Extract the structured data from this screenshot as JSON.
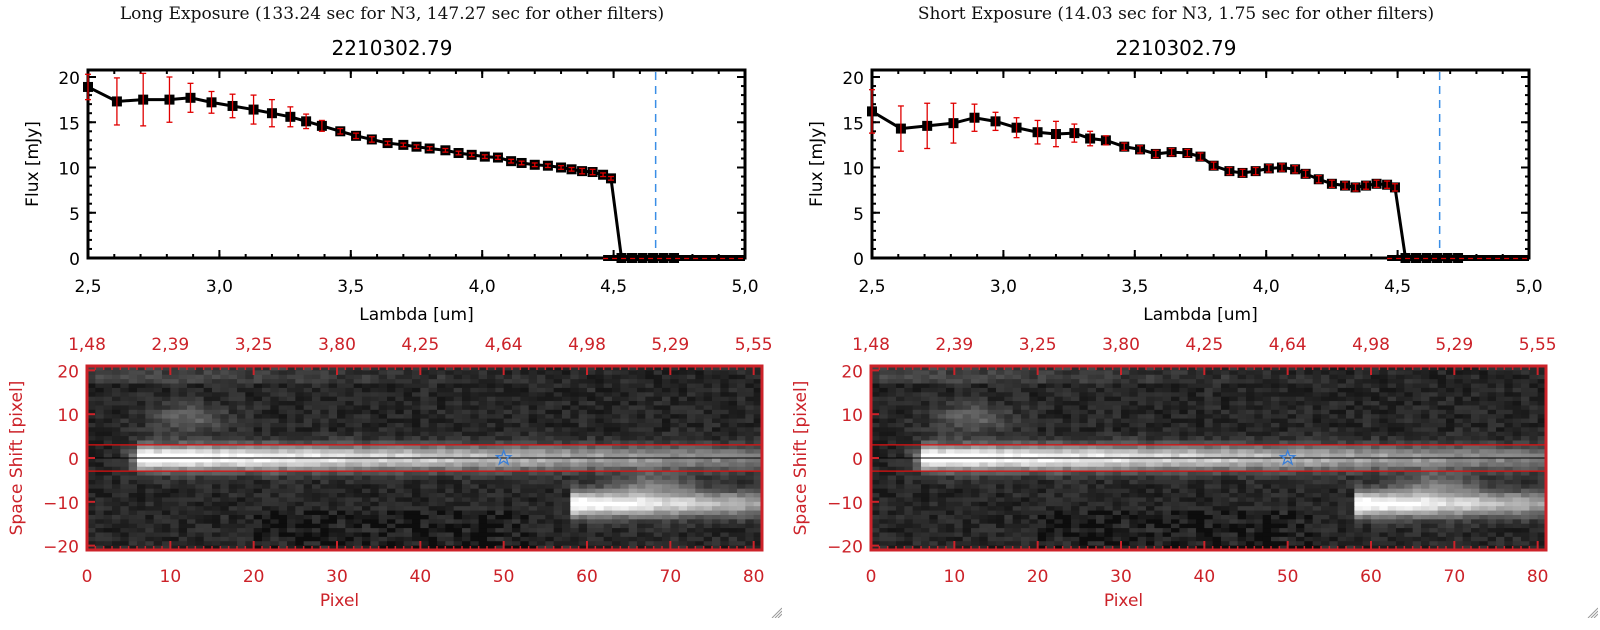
{
  "panels": [
    {
      "title": "Long Exposure (133.24 sec for N3, 147.27 sec for other filters)",
      "object_id": "2210302.79"
    },
    {
      "title": "Short Exposure (14.03 sec for N3, 1.75 sec for other filters)",
      "object_id": "2210302.79"
    }
  ],
  "chart_data": [
    {
      "type": "line",
      "title": "2210302.79",
      "xlabel": "Lambda [um]",
      "ylabel": "Flux [mJy]",
      "xlim": [
        2.5,
        5.0
      ],
      "ylim": [
        0,
        20
      ],
      "xticks": [
        "2.5",
        "3.0",
        "3.5",
        "4.0",
        "4.5",
        "5.0"
      ],
      "yticks": [
        "0",
        "5",
        "10",
        "15",
        "20"
      ],
      "vline_x": 4.66,
      "series": [
        {
          "name": "flux",
          "x": [
            2.5,
            2.61,
            2.71,
            2.81,
            2.89,
            2.97,
            3.05,
            3.13,
            3.2,
            3.27,
            3.33,
            3.39,
            3.46,
            3.52,
            3.58,
            3.64,
            3.7,
            3.75,
            3.8,
            3.86,
            3.91,
            3.96,
            4.01,
            4.06,
            4.11,
            4.15,
            4.2,
            4.25,
            4.3,
            4.34,
            4.38,
            4.42,
            4.46,
            4.49,
            4.53,
            4.57,
            4.61,
            4.65,
            4.69,
            4.73
          ],
          "y": [
            18.9,
            17.3,
            17.5,
            17.5,
            17.7,
            17.2,
            16.8,
            16.4,
            16.0,
            15.6,
            15.1,
            14.6,
            14.0,
            13.5,
            13.1,
            12.7,
            12.5,
            12.3,
            12.1,
            11.9,
            11.6,
            11.4,
            11.2,
            11.1,
            10.7,
            10.5,
            10.3,
            10.2,
            10.0,
            9.8,
            9.6,
            9.5,
            9.2,
            8.8,
            0,
            0,
            0,
            0,
            0,
            0
          ],
          "err": [
            1.4,
            2.6,
            2.9,
            2.5,
            1.6,
            1.2,
            1.3,
            1.6,
            1.5,
            1.1,
            0.8,
            0.6,
            0.3,
            0.3,
            0.3,
            0.2,
            0.2,
            0.2,
            0.2,
            0.2,
            0.2,
            0.2,
            0.2,
            0.2,
            0.2,
            0.2,
            0.2,
            0.2,
            0.2,
            0.2,
            0.3,
            0.3,
            0.2,
            0.2,
            0,
            0,
            0,
            0,
            0,
            0
          ]
        }
      ]
    },
    {
      "type": "line",
      "title": "2210302.79",
      "xlabel": "Lambda [um]",
      "ylabel": "Flux [mJy]",
      "xlim": [
        2.5,
        5.0
      ],
      "ylim": [
        0,
        20
      ],
      "xticks": [
        "2.5",
        "3.0",
        "3.5",
        "4.0",
        "4.5",
        "5.0"
      ],
      "yticks": [
        "0",
        "5",
        "10",
        "15",
        "20"
      ],
      "vline_x": 4.66,
      "series": [
        {
          "name": "flux",
          "x": [
            2.5,
            2.61,
            2.71,
            2.81,
            2.89,
            2.97,
            3.05,
            3.13,
            3.2,
            3.27,
            3.33,
            3.39,
            3.46,
            3.52,
            3.58,
            3.64,
            3.7,
            3.75,
            3.8,
            3.86,
            3.91,
            3.96,
            4.01,
            4.06,
            4.11,
            4.15,
            4.2,
            4.25,
            4.3,
            4.34,
            4.38,
            4.42,
            4.46,
            4.49,
            4.53,
            4.57,
            4.61,
            4.65,
            4.69,
            4.73
          ],
          "y": [
            16.2,
            14.3,
            14.6,
            14.9,
            15.5,
            15.1,
            14.4,
            13.9,
            13.7,
            13.8,
            13.2,
            13.0,
            12.3,
            12.0,
            11.5,
            11.7,
            11.6,
            11.2,
            10.2,
            9.6,
            9.4,
            9.6,
            9.9,
            10.0,
            9.8,
            9.3,
            8.7,
            8.2,
            8.0,
            7.8,
            8.0,
            8.2,
            8.1,
            7.8,
            0,
            0,
            0,
            0,
            0,
            0
          ],
          "err": [
            2.4,
            2.5,
            2.5,
            2.2,
            1.5,
            1.0,
            1.1,
            1.3,
            1.4,
            1.0,
            0.8,
            0.5,
            0.4,
            0.4,
            0.4,
            0.4,
            0.4,
            0.4,
            0.4,
            0.4,
            0.4,
            0.4,
            0.4,
            0.4,
            0.4,
            0.4,
            0.4,
            0.4,
            0.4,
            0.4,
            0.4,
            0.4,
            0.4,
            0.4,
            0,
            0,
            0,
            0,
            0,
            0
          ]
        }
      ]
    },
    {
      "type": "heatmap",
      "xlabel": "Pixel",
      "ylabel": "Space Shift [pixel]",
      "xlim": [
        0,
        81
      ],
      "ylim": [
        -21,
        21
      ],
      "xticks": [
        "0",
        "10",
        "20",
        "30",
        "40",
        "50",
        "60",
        "70",
        "80"
      ],
      "yticks": [
        "-20",
        "-10",
        "0",
        "10",
        "20"
      ],
      "top_axis_ticks": [
        "1.48",
        "2.39",
        "3.25",
        "3.80",
        "4.25",
        "4.64",
        "4.98",
        "5.29",
        "5.55"
      ],
      "aperture_lines_y": [
        3,
        -3
      ],
      "center_line_y": 0,
      "star_marker": {
        "x": 50,
        "y": 0
      },
      "sources": [
        {
          "label": "primary trace",
          "x_peak": 10,
          "y_center": 0,
          "extends_to_x": 81
        },
        {
          "label": "secondary trace",
          "x_peak": 64,
          "y_center": -10.5,
          "extends_to_x": 81
        }
      ]
    }
  ],
  "colors": {
    "axis_red": "#cc2229",
    "errorbar_red": "#e00000",
    "vline_blue": "#3a8ee6",
    "marker_black": "#000000",
    "star_blue": "#3a7fd8"
  }
}
